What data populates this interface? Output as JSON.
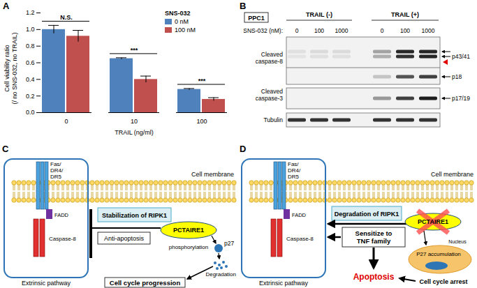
{
  "chart_data": {
    "type": "bar",
    "categories": [
      "0",
      "10",
      "100"
    ],
    "xlabel": "TRAIL (ng/ml)",
    "ylabel": [
      "Cell viability ratio",
      "(/ no SNS-032, no TRAIL)"
    ],
    "ylim": [
      0,
      1.2
    ],
    "yticks": [
      0,
      0.2,
      0.4,
      0.6,
      0.8,
      1,
      1.2
    ],
    "grid": false,
    "legend": "top-right",
    "legend_title": "SNS-032",
    "series": [
      {
        "name": "0 nM",
        "color": "#4f81bd",
        "values": [
          1.0,
          0.65,
          0.28
        ],
        "errors": [
          0.05,
          0.01,
          0.01
        ]
      },
      {
        "name": "100 nM",
        "color": "#c0504d",
        "values": [
          0.92,
          0.4,
          0.16
        ],
        "errors": [
          0.07,
          0.04,
          0.02
        ]
      }
    ],
    "annotations": [
      "N.S.",
      "***",
      "***"
    ]
  },
  "panels": {
    "A": {
      "label": "A"
    },
    "B": {
      "label": "B",
      "cell_line": "PPC1",
      "groups": [
        "TRAIL (-)",
        "TRAIL (+)"
      ],
      "treatment_label": "SNS-032 (nM):",
      "lanes": [
        0,
        100,
        1000,
        0,
        100,
        1000
      ],
      "rows": [
        {
          "name": [
            "Cleaved",
            "caspase-8"
          ],
          "bands": [
            "p43/41",
            "p18"
          ]
        },
        {
          "name": [
            "Cleaved",
            "caspase-3"
          ],
          "bands": [
            "p17/19"
          ]
        },
        {
          "name": [
            "Tubulin"
          ],
          "bands": []
        }
      ]
    },
    "C": {
      "label": "C",
      "receptor": [
        "Fas/",
        "DR4/",
        "DR5"
      ],
      "adaptor": "FADD",
      "caspase": "Caspase-8",
      "membrane": "Cell membrane",
      "pathway": "Extrinsic pathway",
      "boxes": [
        "Stabilization of RIPK1",
        "Anti-apoptosis"
      ],
      "kinase": "PCTAIRE1",
      "substrate": "p27",
      "steps": [
        "phosphorylation",
        "Degradation"
      ],
      "outcome": "Cell cycle progression"
    },
    "D": {
      "label": "D",
      "receptor": [
        "Fas/",
        "DR4/",
        "DR5"
      ],
      "adaptor": "FADD",
      "caspase": "Caspase-8",
      "membrane": "Cell membrane",
      "pathway": "Extrinsic pathway",
      "boxes": [
        "Degradation of RIPK1",
        [
          "Sensitize to",
          "TNF family"
        ]
      ],
      "kinase": "PCTAIRE1",
      "nucleus": "Nucleus",
      "accumulation": "P27 accumulation",
      "arrest": "Cell cycle arrest",
      "outcome": "Apoptosis"
    }
  }
}
